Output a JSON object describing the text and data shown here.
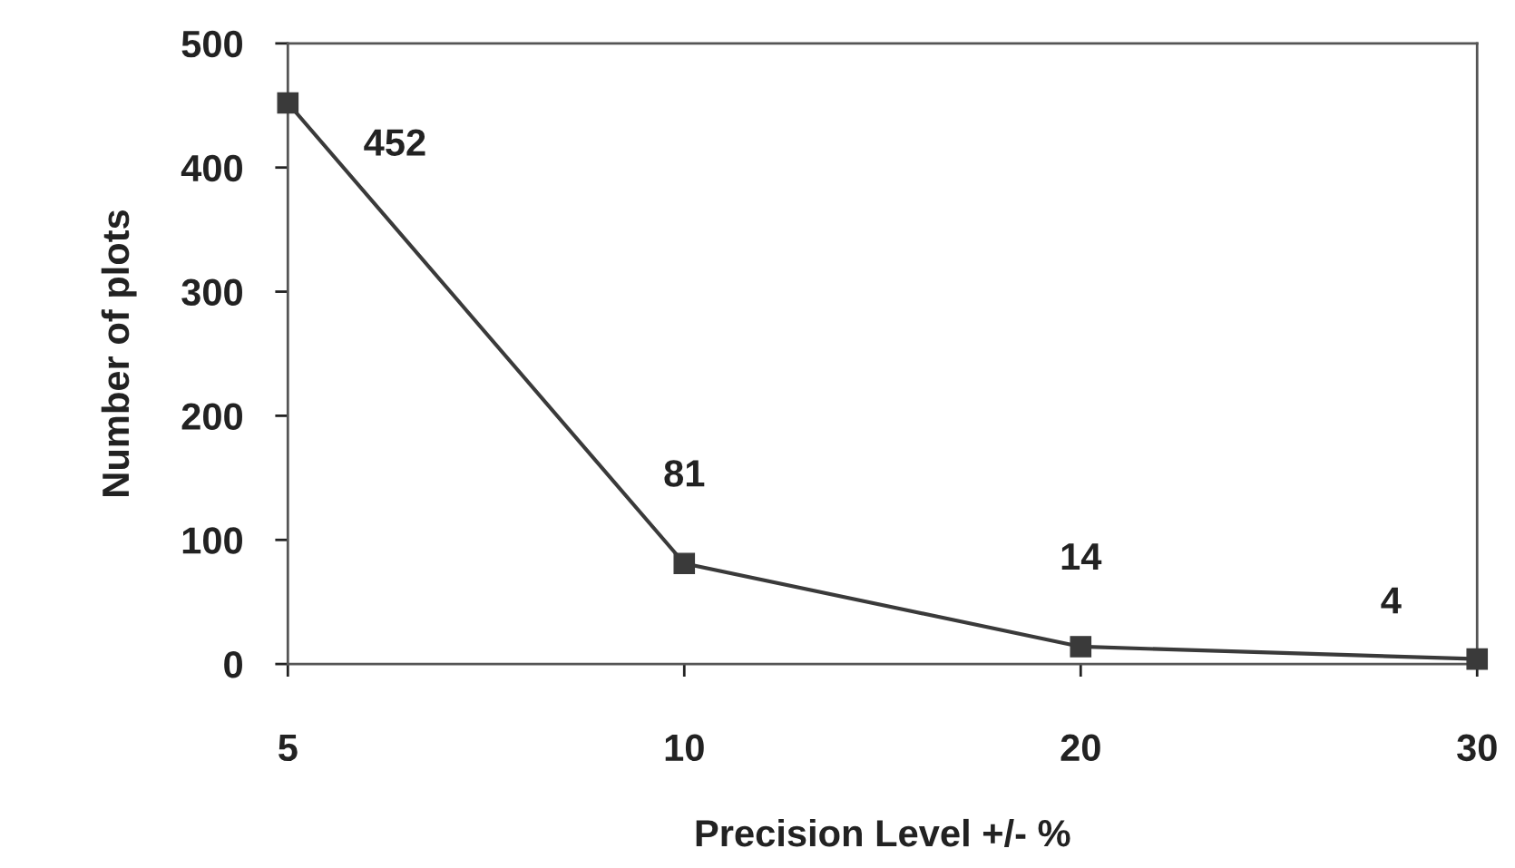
{
  "chart_data": {
    "type": "line",
    "xlabel": "Precision Level +/- %",
    "ylabel": "Number of plots",
    "categories": [
      "5",
      "10",
      "20",
      "30"
    ],
    "series": [
      {
        "color": "#3a3a3a",
        "values": [
          452,
          81,
          14,
          4
        ]
      }
    ],
    "ylim": [
      0,
      500
    ],
    "yticks": [
      0,
      100,
      200,
      300,
      400,
      500
    ],
    "marker": "square",
    "line_style": "solid",
    "data_labels": true,
    "grid": false,
    "legend": false
  }
}
